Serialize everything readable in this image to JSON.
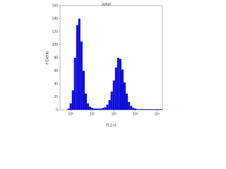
{
  "chart_data": {
    "type": "histogram",
    "title": "Jurkat",
    "x_label": "FL1-H",
    "y_label": "# Events",
    "log_x": true,
    "color": "#0a0adc",
    "xlim": [
      0.32,
      17783
    ],
    "ylim": [
      0,
      160
    ],
    "xticks": [
      {
        "value": 1,
        "label": "10⁰"
      },
      {
        "value": 10,
        "label": "10¹"
      },
      {
        "value": 100,
        "label": "10²"
      },
      {
        "value": 1000,
        "label": "10³"
      },
      {
        "value": 10000,
        "label": "10⁴"
      }
    ],
    "yticks": [
      0,
      20,
      40,
      60,
      80,
      100,
      120,
      140,
      160
    ],
    "x": [
      0.63,
      0.79,
      1,
      1.26,
      1.58,
      2,
      2.51,
      3.16,
      3.98,
      5.01,
      6.31,
      7.94,
      10,
      12.6,
      15.8,
      20,
      25.1,
      31.6,
      39.8,
      50.1,
      63.1,
      79.4,
      100,
      126,
      158,
      200,
      251,
      316,
      398,
      501,
      631,
      794,
      1000,
      1259,
      1585,
      1995,
      2512,
      3162,
      3981,
      5012,
      6310,
      7943,
      10000,
      12589,
      15849
    ],
    "values": [
      0,
      2,
      10,
      30,
      80,
      130,
      140,
      105,
      60,
      25,
      10,
      5,
      3,
      2,
      2,
      2,
      2,
      3,
      4,
      8,
      15,
      28,
      45,
      65,
      80,
      78,
      62,
      42,
      25,
      12,
      6,
      3,
      2,
      1,
      1,
      1,
      1,
      1,
      1,
      1,
      1,
      1,
      1,
      1,
      1
    ]
  }
}
